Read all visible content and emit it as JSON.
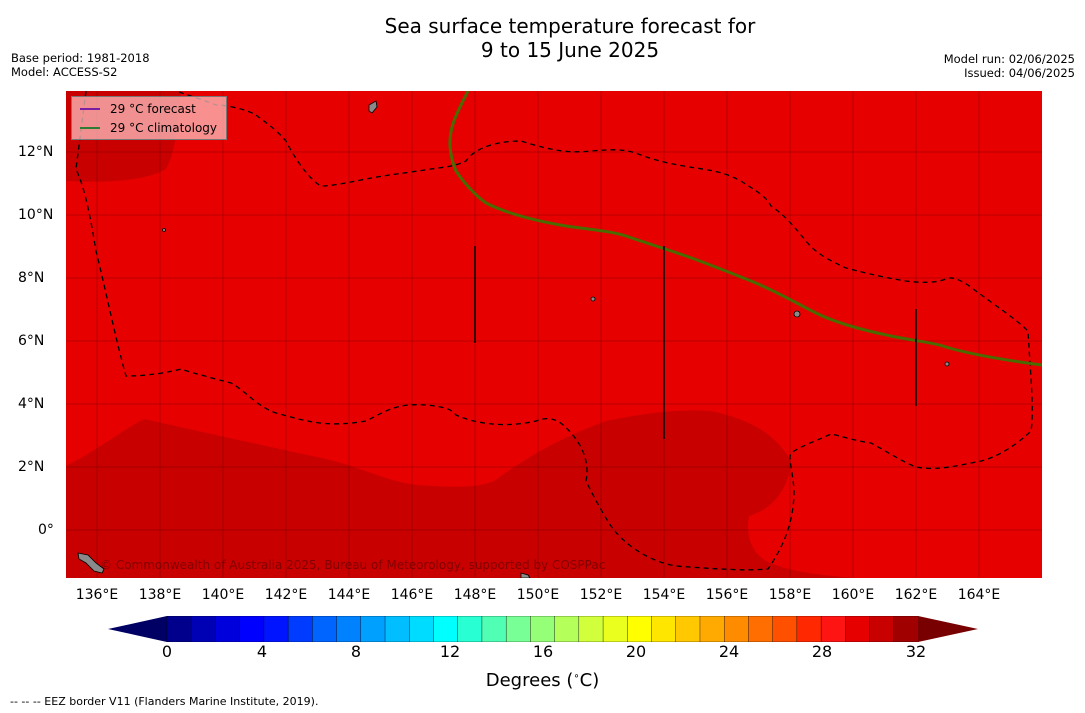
{
  "title_line1": "Sea surface temperature forecast for",
  "title_line2": "9 to 15 June 2025",
  "meta": {
    "base_period": "Base period: 1981-2018",
    "model": "Model: ACCESS-S2",
    "model_run": "Model run: 02/06/2025",
    "issued": "Issued: 04/06/2025"
  },
  "legend": {
    "forecast": "29 °C  forecast",
    "climatology": "29 °C  climatology",
    "forecast_color": "#7b1fa2",
    "climatology_color": "#2e7d32"
  },
  "lat_labels": [
    "12°N",
    "10°N",
    "8°N",
    "6°N",
    "4°N",
    "2°N",
    "0°"
  ],
  "lon_labels": [
    "136°E",
    "138°E",
    "140°E",
    "142°E",
    "144°E",
    "146°E",
    "148°E",
    "150°E",
    "152°E",
    "154°E",
    "156°E",
    "158°E",
    "160°E",
    "162°E",
    "164°E"
  ],
  "copyright": "© Commonwealth of Australia 2025, Bureau of Meteorology, supported by COSPPac",
  "colorbar": {
    "ticks": [
      "0",
      "4",
      "8",
      "12",
      "16",
      "20",
      "24",
      "28",
      "32"
    ],
    "colors": [
      "#00008c",
      "#0000b4",
      "#0000dc",
      "#0000ff",
      "#0014ff",
      "#003cff",
      "#0064ff",
      "#0082ff",
      "#00a0ff",
      "#00beff",
      "#00dcff",
      "#00ffff",
      "#28ffd2",
      "#50ffb4",
      "#78ff96",
      "#96ff78",
      "#b4ff5a",
      "#d2ff3c",
      "#ebff1e",
      "#ffff00",
      "#ffe600",
      "#ffc800",
      "#ffaa00",
      "#ff8c00",
      "#ff6e00",
      "#ff5000",
      "#ff2800",
      "#ff1414",
      "#e60000",
      "#c80000",
      "#a00000"
    ],
    "low_color": "#000064",
    "high_color": "#780000",
    "title": "Degrees ($^\\circ$C)"
  },
  "footer": "--  --  -- EEZ border V11 (Flanders Marine Institute, 2019).",
  "map_colors": {
    "base": "#e60000",
    "warm": "#c80000",
    "land": "#8a8a8a"
  }
}
